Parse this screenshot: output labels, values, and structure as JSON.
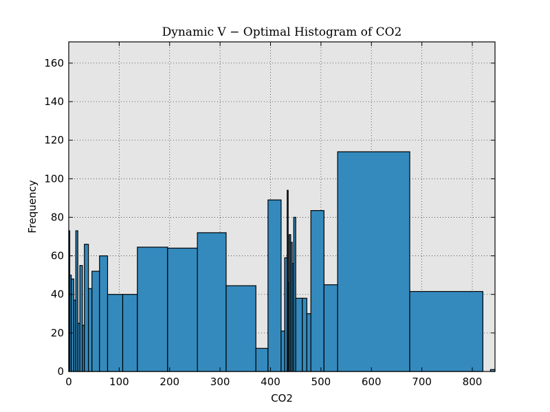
{
  "chart_data": {
    "type": "bar",
    "title": "Dynamic V − Optimal Histogram of CO2",
    "xlabel": "CO2",
    "ylabel": "Frequency",
    "xlim": [
      0,
      845
    ],
    "ylim": [
      0,
      171
    ],
    "xticks": [
      0,
      100,
      200,
      300,
      400,
      500,
      600,
      700,
      800
    ],
    "yticks": [
      0,
      20,
      40,
      60,
      80,
      100,
      120,
      140,
      160
    ],
    "grid": true,
    "bar_color": "#348abd",
    "edge_color": "#000000",
    "background_color": "#e5e5e5",
    "bins": [
      {
        "x0": 0,
        "x1": 2,
        "count": 73
      },
      {
        "x0": 2,
        "x1": 5,
        "count": 50
      },
      {
        "x0": 5,
        "x1": 10,
        "count": 48
      },
      {
        "x0": 10,
        "x1": 14,
        "count": 37
      },
      {
        "x0": 14,
        "x1": 18,
        "count": 73
      },
      {
        "x0": 18,
        "x1": 22,
        "count": 25
      },
      {
        "x0": 22,
        "x1": 27,
        "count": 55
      },
      {
        "x0": 27,
        "x1": 31,
        "count": 24
      },
      {
        "x0": 31,
        "x1": 39,
        "count": 66
      },
      {
        "x0": 39,
        "x1": 46,
        "count": 43
      },
      {
        "x0": 46,
        "x1": 61,
        "count": 52
      },
      {
        "x0": 61,
        "x1": 77,
        "count": 60
      },
      {
        "x0": 77,
        "x1": 107,
        "count": 40
      },
      {
        "x0": 107,
        "x1": 136,
        "count": 40
      },
      {
        "x0": 136,
        "x1": 196,
        "count": 64.5
      },
      {
        "x0": 196,
        "x1": 255,
        "count": 64
      },
      {
        "x0": 255,
        "x1": 312,
        "count": 72
      },
      {
        "x0": 312,
        "x1": 371,
        "count": 44.5
      },
      {
        "x0": 371,
        "x1": 395,
        "count": 12
      },
      {
        "x0": 395,
        "x1": 421,
        "count": 89
      },
      {
        "x0": 421,
        "x1": 428,
        "count": 21
      },
      {
        "x0": 428,
        "x1": 433,
        "count": 59
      },
      {
        "x0": 433,
        "x1": 435,
        "count": 94
      },
      {
        "x0": 435,
        "x1": 437,
        "count": 46
      },
      {
        "x0": 437,
        "x1": 440,
        "count": 71
      },
      {
        "x0": 440,
        "x1": 443,
        "count": 67
      },
      {
        "x0": 443,
        "x1": 446,
        "count": 56
      },
      {
        "x0": 446,
        "x1": 450,
        "count": 80
      },
      {
        "x0": 450,
        "x1": 463,
        "count": 38
      },
      {
        "x0": 463,
        "x1": 472,
        "count": 38
      },
      {
        "x0": 472,
        "x1": 480,
        "count": 30
      },
      {
        "x0": 480,
        "x1": 506,
        "count": 83.5
      },
      {
        "x0": 506,
        "x1": 533,
        "count": 45
      },
      {
        "x0": 533,
        "x1": 676,
        "count": 114
      },
      {
        "x0": 676,
        "x1": 821,
        "count": 41.5
      },
      {
        "x0": 836,
        "x1": 845,
        "count": 1
      }
    ]
  }
}
